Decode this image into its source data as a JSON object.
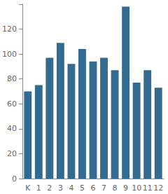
{
  "chart_data": {
    "type": "bar",
    "categories": [
      "K",
      "1",
      "2",
      "3",
      "4",
      "5",
      "6",
      "7",
      "8",
      "9",
      "10",
      "11",
      "12"
    ],
    "values": [
      70,
      75,
      97,
      109,
      92,
      104,
      94,
      97,
      87,
      138,
      77,
      87,
      73
    ],
    "color": "#336a90",
    "ylim": [
      0,
      140
    ],
    "yticks": [
      0,
      20,
      40,
      60,
      80,
      100,
      120
    ],
    "grid": false
  }
}
